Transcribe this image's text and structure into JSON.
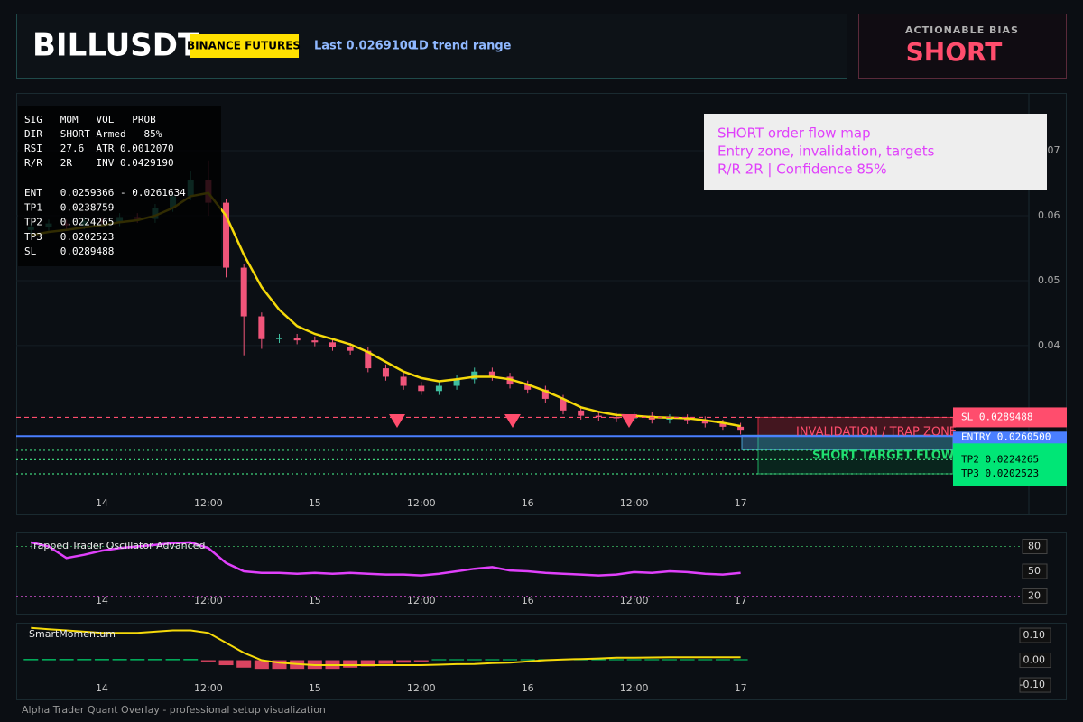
{
  "header": {
    "symbol": "BILLUSDT",
    "exchange": "BINANCE FUTURES",
    "last": "Last 0.0269100",
    "range": "1D trend range"
  },
  "bias": {
    "label": "ACTIONABLE BIAS",
    "value": "SHORT"
  },
  "info": {
    "lines": [
      "SIG   MOM   VOL   PROB",
      "DIR   SHORT Armed   85%",
      "RSI   27.6  ATR 0.0012070",
      "R/R   2R    INV 0.0429190",
      "ENT   0.0259366 - 0.0261634",
      "TP1   0.0238759",
      "TP2   0.0224265",
      "TP3   0.0202523",
      "SL    0.0289488"
    ]
  },
  "callout": {
    "lines": [
      "SHORT order flow map",
      "Entry zone, invalidation, targets",
      "R/R 2R | Confidence 85%"
    ]
  },
  "zones": {
    "trap": "INVALIDATION / TRAP ZONE",
    "target": "SHORT TARGET FLOW"
  },
  "footer": "Alpha Trader Quant Overlay - professional setup visualization",
  "chart_data": [
    {
      "type": "candlestick",
      "x": [
        -8,
        -6,
        -4,
        -2,
        0,
        2,
        4,
        6,
        8,
        10,
        12,
        14,
        16,
        18,
        20,
        22,
        24,
        26,
        28,
        30,
        32,
        34,
        36,
        38,
        40,
        42,
        44,
        46,
        48,
        50,
        52,
        54,
        56,
        58,
        60,
        62,
        64,
        66,
        68,
        70,
        72
      ],
      "open": [
        0.0578,
        0.0583,
        0.0588,
        0.0585,
        0.0592,
        0.059,
        0.0598,
        0.0595,
        0.0612,
        0.063,
        0.0655,
        0.062,
        0.052,
        0.0445,
        0.041,
        0.0412,
        0.0408,
        0.0405,
        0.0398,
        0.0392,
        0.0365,
        0.0352,
        0.0338,
        0.033,
        0.0338,
        0.0348,
        0.036,
        0.0352,
        0.034,
        0.0332,
        0.0318,
        0.03,
        0.0292,
        0.029,
        0.0288,
        0.0292,
        0.0286,
        0.0288,
        0.0285,
        0.028,
        0.0275
      ],
      "high": [
        0.0589,
        0.0594,
        0.0594,
        0.0598,
        0.0598,
        0.0604,
        0.0604,
        0.0618,
        0.0636,
        0.0668,
        0.0685,
        0.0626,
        0.0526,
        0.0451,
        0.0418,
        0.0418,
        0.0414,
        0.0411,
        0.0404,
        0.0398,
        0.0371,
        0.0358,
        0.0344,
        0.0344,
        0.0354,
        0.0366,
        0.0366,
        0.0358,
        0.0346,
        0.0338,
        0.0324,
        0.0306,
        0.0298,
        0.0296,
        0.0298,
        0.0298,
        0.0294,
        0.0294,
        0.0291,
        0.0286,
        0.0281
      ],
      "low": [
        0.0572,
        0.0577,
        0.0579,
        0.0579,
        0.0584,
        0.0584,
        0.0589,
        0.0589,
        0.0606,
        0.0624,
        0.06,
        0.0505,
        0.0385,
        0.0395,
        0.0404,
        0.0402,
        0.0399,
        0.0392,
        0.0386,
        0.0359,
        0.0346,
        0.0332,
        0.0324,
        0.0324,
        0.0332,
        0.0342,
        0.0346,
        0.0334,
        0.0326,
        0.0312,
        0.0294,
        0.0286,
        0.0284,
        0.0282,
        0.0282,
        0.028,
        0.028,
        0.0279,
        0.0274,
        0.0269,
        0.0263
      ],
      "close": [
        0.0583,
        0.0588,
        0.0585,
        0.0592,
        0.059,
        0.0598,
        0.0595,
        0.0612,
        0.063,
        0.0655,
        0.062,
        0.052,
        0.0445,
        0.041,
        0.0412,
        0.0408,
        0.0405,
        0.0398,
        0.0392,
        0.0365,
        0.0352,
        0.0338,
        0.033,
        0.0338,
        0.0348,
        0.036,
        0.0352,
        0.034,
        0.0332,
        0.0318,
        0.03,
        0.0292,
        0.029,
        0.0288,
        0.0292,
        0.0286,
        0.0288,
        0.0285,
        0.028,
        0.0275,
        0.0269
      ],
      "ema": [
        0.057,
        0.0575,
        0.0578,
        0.0582,
        0.0585,
        0.059,
        0.0593,
        0.06,
        0.0612,
        0.063,
        0.0635,
        0.06,
        0.054,
        0.049,
        0.0455,
        0.043,
        0.0418,
        0.041,
        0.0402,
        0.039,
        0.0375,
        0.036,
        0.035,
        0.0345,
        0.0348,
        0.0352,
        0.0352,
        0.0348,
        0.034,
        0.033,
        0.0318,
        0.0305,
        0.0298,
        0.0293,
        0.0292,
        0.029,
        0.0289,
        0.0288,
        0.0285,
        0.0281,
        0.0276
      ],
      "colors": {
        "up": "#3fbfa0",
        "down": "#f0557a",
        "ema": "#f5d90a"
      },
      "xlim": [
        -9.66,
        104.5
      ],
      "ylim": [
        0.014,
        0.0789
      ],
      "xticks": [
        {
          "value": 0,
          "label": "14"
        },
        {
          "value": 12,
          "label": "12:00"
        },
        {
          "value": 24,
          "label": "15"
        },
        {
          "value": 36,
          "label": "12:00"
        },
        {
          "value": 48,
          "label": "16"
        },
        {
          "value": 60,
          "label": "12:00"
        },
        {
          "value": 72,
          "label": "17"
        }
      ],
      "yticks": [
        0.04,
        0.05,
        0.06,
        0.07
      ],
      "grid": true,
      "levels": [
        {
          "value": 0.0289488,
          "label": "SL 0.0289488",
          "color": "#ff4d6d"
        },
        {
          "value": 0.02605,
          "label": "ENTRY 0.0260500",
          "color": "#4a7fff"
        },
        {
          "value": 0.0238759,
          "label": null,
          "color": "#3fd07a"
        },
        {
          "value": 0.0224265,
          "label": "TP2 0.0224265",
          "color": "#3fd07a"
        },
        {
          "value": 0.0202523,
          "label": "TP3 0.0202523",
          "color": "#3fd07a"
        }
      ]
    },
    {
      "type": "line",
      "title": "Trapped Trader Oscillator Advanced",
      "color": "#e040fb",
      "values": [
        85,
        80,
        66,
        70,
        75,
        78,
        80,
        82,
        84,
        85,
        78,
        60,
        50,
        48,
        48,
        47,
        48,
        47,
        48,
        47,
        46,
        46,
        45,
        47,
        50,
        53,
        55,
        51,
        50,
        48,
        47,
        46,
        45,
        46,
        49,
        48,
        50,
        49,
        47,
        46,
        48
      ],
      "ylim": [
        -1.3,
        96.9
      ],
      "yticks": [
        80,
        50,
        20
      ]
    },
    {
      "type": "combo",
      "title": "SmartMomentum",
      "bars": [
        0.005,
        0.005,
        0.005,
        0.005,
        0.005,
        0.005,
        0.005,
        0.005,
        0.005,
        0.005,
        -0.005,
        -0.02,
        -0.03,
        -0.035,
        -0.035,
        -0.035,
        -0.035,
        -0.035,
        -0.03,
        -0.025,
        -0.015,
        -0.01,
        -0.005,
        0.004,
        0.004,
        0.004,
        0.004,
        0.004,
        0.004,
        0.004,
        0.004,
        0.004,
        0.004,
        0.004,
        0.004,
        0.004,
        0.004,
        0.004,
        0.004,
        0.004,
        0.004
      ],
      "line": [
        0.13,
        0.125,
        0.12,
        0.115,
        0.11,
        0.11,
        0.11,
        0.115,
        0.12,
        0.12,
        0.11,
        0.07,
        0.03,
        0.0,
        -0.01,
        -0.015,
        -0.02,
        -0.02,
        -0.02,
        -0.02,
        -0.02,
        -0.02,
        -0.02,
        -0.018,
        -0.016,
        -0.015,
        -0.012,
        -0.01,
        -0.005,
        0.0,
        0.003,
        0.005,
        0.007,
        0.01,
        0.01,
        0.011,
        0.012,
        0.012,
        0.012,
        0.012,
        0.012
      ],
      "colors": {
        "up": "#00e676",
        "down": "#ff4d6d",
        "line": "#f5d90a"
      },
      "ylim": [
        -0.158,
        0.151
      ],
      "yticks": [
        {
          "value": 0.1,
          "label": "0.10"
        },
        {
          "value": 0,
          "label": "0.00"
        },
        {
          "value": -0.1,
          "label": "-0.10"
        }
      ]
    }
  ]
}
